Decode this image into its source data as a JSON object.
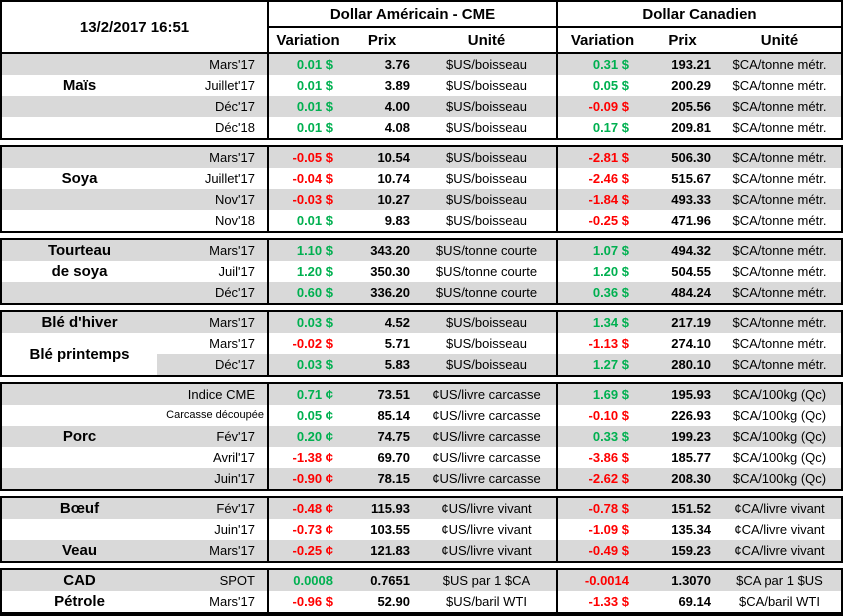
{
  "header": {
    "datetime": "13/2/2017 16:51",
    "us_group": "Dollar Américain - CME",
    "ca_group": "Dollar Canadien",
    "columns": {
      "variation": "Variation",
      "prix": "Prix",
      "unite": "Unité"
    }
  },
  "colors": {
    "positive": "#00B050",
    "negative": "#FF0000",
    "row_shade": "#D9D9D9"
  },
  "sections": [
    {
      "id": "mais",
      "label_cells": [
        {
          "row": 2,
          "span": 1,
          "text": "Maïs"
        }
      ],
      "rows": [
        {
          "month": "Mars'17",
          "shaded": true,
          "us": {
            "var": "0.01 $",
            "dir": "pos",
            "prix": "3.76",
            "unit": "$US/boisseau"
          },
          "ca": {
            "var": "0.31 $",
            "dir": "pos",
            "prix": "193.21",
            "unit": "$CA/tonne métr."
          }
        },
        {
          "month": "Juillet'17",
          "shaded": false,
          "us": {
            "var": "0.01 $",
            "dir": "pos",
            "prix": "3.89",
            "unit": "$US/boisseau"
          },
          "ca": {
            "var": "0.05 $",
            "dir": "pos",
            "prix": "200.29",
            "unit": "$CA/tonne métr."
          }
        },
        {
          "month": "Déc'17",
          "shaded": true,
          "us": {
            "var": "0.01 $",
            "dir": "pos",
            "prix": "4.00",
            "unit": "$US/boisseau"
          },
          "ca": {
            "var": "-0.09 $",
            "dir": "neg",
            "prix": "205.56",
            "unit": "$CA/tonne métr."
          }
        },
        {
          "month": "Déc'18",
          "shaded": false,
          "us": {
            "var": "0.01 $",
            "dir": "pos",
            "prix": "4.08",
            "unit": "$US/boisseau"
          },
          "ca": {
            "var": "0.17 $",
            "dir": "pos",
            "prix": "209.81",
            "unit": "$CA/tonne métr."
          }
        }
      ]
    },
    {
      "id": "soya",
      "label_cells": [
        {
          "row": 2,
          "span": 1,
          "text": "Soya"
        }
      ],
      "rows": [
        {
          "month": "Mars'17",
          "shaded": true,
          "us": {
            "var": "-0.05 $",
            "dir": "neg",
            "prix": "10.54",
            "unit": "$US/boisseau"
          },
          "ca": {
            "var": "-2.81 $",
            "dir": "neg",
            "prix": "506.30",
            "unit": "$CA/tonne métr."
          }
        },
        {
          "month": "Juillet'17",
          "shaded": false,
          "us": {
            "var": "-0.04 $",
            "dir": "neg",
            "prix": "10.74",
            "unit": "$US/boisseau"
          },
          "ca": {
            "var": "-2.46 $",
            "dir": "neg",
            "prix": "515.67",
            "unit": "$CA/tonne métr."
          }
        },
        {
          "month": "Nov'17",
          "shaded": true,
          "us": {
            "var": "-0.03 $",
            "dir": "neg",
            "prix": "10.27",
            "unit": "$US/boisseau"
          },
          "ca": {
            "var": "-1.84 $",
            "dir": "neg",
            "prix": "493.33",
            "unit": "$CA/tonne métr."
          }
        },
        {
          "month": "Nov'18",
          "shaded": false,
          "us": {
            "var": "0.01 $",
            "dir": "pos",
            "prix": "9.83",
            "unit": "$US/boisseau"
          },
          "ca": {
            "var": "-0.25 $",
            "dir": "neg",
            "prix": "471.96",
            "unit": "$CA/tonne métr."
          }
        }
      ]
    },
    {
      "id": "tourteau-de-soya",
      "label_cells": [
        {
          "row": 1,
          "span": 1,
          "text": "Tourteau"
        },
        {
          "row": 2,
          "span": 1,
          "text": "de soya"
        }
      ],
      "rows": [
        {
          "month": "Mars'17",
          "shaded": true,
          "us": {
            "var": "1.10 $",
            "dir": "pos",
            "prix": "343.20",
            "unit": "$US/tonne courte"
          },
          "ca": {
            "var": "1.07 $",
            "dir": "pos",
            "prix": "494.32",
            "unit": "$CA/tonne métr."
          }
        },
        {
          "month": "Juil'17",
          "shaded": false,
          "us": {
            "var": "1.20 $",
            "dir": "pos",
            "prix": "350.30",
            "unit": "$US/tonne courte"
          },
          "ca": {
            "var": "1.20 $",
            "dir": "pos",
            "prix": "504.55",
            "unit": "$CA/tonne métr."
          }
        },
        {
          "month": "Déc'17",
          "shaded": true,
          "us": {
            "var": "0.60 $",
            "dir": "pos",
            "prix": "336.20",
            "unit": "$US/tonne courte"
          },
          "ca": {
            "var": "0.36 $",
            "dir": "pos",
            "prix": "484.24",
            "unit": "$CA/tonne métr."
          }
        }
      ]
    },
    {
      "id": "ble",
      "label_cells": [
        {
          "row": 1,
          "span": 1,
          "text": "Blé d'hiver"
        },
        {
          "row": 2,
          "span": 2,
          "text": "Blé printemps",
          "bg": "white"
        }
      ],
      "rows": [
        {
          "month": "Mars'17",
          "shaded": true,
          "us": {
            "var": "0.03 $",
            "dir": "pos",
            "prix": "4.52",
            "unit": "$US/boisseau"
          },
          "ca": {
            "var": "1.34 $",
            "dir": "pos",
            "prix": "217.19",
            "unit": "$CA/tonne métr."
          }
        },
        {
          "month": "Mars'17",
          "shaded": false,
          "us": {
            "var": "-0.02 $",
            "dir": "neg",
            "prix": "5.71",
            "unit": "$US/boisseau"
          },
          "ca": {
            "var": "-1.13 $",
            "dir": "neg",
            "prix": "274.10",
            "unit": "$CA/tonne métr."
          }
        },
        {
          "month": "Déc'17",
          "shaded": true,
          "us": {
            "var": "0.03 $",
            "dir": "pos",
            "prix": "5.83",
            "unit": "$US/boisseau"
          },
          "ca": {
            "var": "1.27 $",
            "dir": "pos",
            "prix": "280.10",
            "unit": "$CA/tonne métr."
          }
        }
      ]
    },
    {
      "id": "porc",
      "label_cells": [
        {
          "row": 3,
          "span": 1,
          "text": "Porc"
        }
      ],
      "rows": [
        {
          "month": "Indice CME",
          "shaded": true,
          "us": {
            "var": "0.71 ¢",
            "dir": "pos",
            "prix": "73.51",
            "unit": "¢US/livre carcasse"
          },
          "ca": {
            "var": "1.69 $",
            "dir": "pos",
            "prix": "195.93",
            "unit": "$CA/100kg (Qc)"
          }
        },
        {
          "month": "Carcasse découpée",
          "shaded": false,
          "small": true,
          "us": {
            "var": "0.05 ¢",
            "dir": "pos",
            "prix": "85.14",
            "unit": "¢US/livre carcasse"
          },
          "ca": {
            "var": "-0.10 $",
            "dir": "neg",
            "prix": "226.93",
            "unit": "$CA/100kg (Qc)"
          }
        },
        {
          "month": "Fév'17",
          "shaded": true,
          "us": {
            "var": "0.20 ¢",
            "dir": "pos",
            "prix": "74.75",
            "unit": "¢US/livre carcasse"
          },
          "ca": {
            "var": "0.33 $",
            "dir": "pos",
            "prix": "199.23",
            "unit": "$CA/100kg (Qc)"
          }
        },
        {
          "month": "Avril'17",
          "shaded": false,
          "us": {
            "var": "-1.38 ¢",
            "dir": "neg",
            "prix": "69.70",
            "unit": "¢US/livre carcasse"
          },
          "ca": {
            "var": "-3.86 $",
            "dir": "neg",
            "prix": "185.77",
            "unit": "$CA/100kg (Qc)"
          }
        },
        {
          "month": "Juin'17",
          "shaded": true,
          "us": {
            "var": "-0.90 ¢",
            "dir": "neg",
            "prix": "78.15",
            "unit": "¢US/livre carcasse"
          },
          "ca": {
            "var": "-2.62 $",
            "dir": "neg",
            "prix": "208.30",
            "unit": "$CA/100kg (Qc)"
          }
        }
      ]
    },
    {
      "id": "boeuf-veau",
      "label_cells": [
        {
          "row": 1,
          "span": 1,
          "text": "Bœuf"
        },
        {
          "row": 3,
          "span": 1,
          "text": "Veau"
        }
      ],
      "rows": [
        {
          "month": "Fév'17",
          "shaded": true,
          "us": {
            "var": "-0.48 ¢",
            "dir": "neg",
            "prix": "115.93",
            "unit": "¢US/livre vivant"
          },
          "ca": {
            "var": "-0.78 $",
            "dir": "neg",
            "prix": "151.52",
            "unit": "¢CA/livre vivant"
          }
        },
        {
          "month": "Juin'17",
          "shaded": false,
          "us": {
            "var": "-0.73 ¢",
            "dir": "neg",
            "prix": "103.55",
            "unit": "¢US/livre vivant"
          },
          "ca": {
            "var": "-1.09 $",
            "dir": "neg",
            "prix": "135.34",
            "unit": "¢CA/livre vivant"
          }
        },
        {
          "month": "Mars'17",
          "shaded": true,
          "us": {
            "var": "-0.25 ¢",
            "dir": "neg",
            "prix": "121.83",
            "unit": "¢US/livre vivant"
          },
          "ca": {
            "var": "-0.49 $",
            "dir": "neg",
            "prix": "159.23",
            "unit": "¢CA/livre vivant"
          }
        }
      ]
    },
    {
      "id": "cad-petrole",
      "label_cells": [
        {
          "row": 1,
          "span": 1,
          "text": "CAD"
        },
        {
          "row": 2,
          "span": 1,
          "text": "Pétrole"
        }
      ],
      "rows": [
        {
          "month": "SPOT",
          "shaded": true,
          "us": {
            "var": "0.0008",
            "dir": "pos",
            "prix": "0.7651",
            "unit": "$US par 1 $CA"
          },
          "ca": {
            "var": "-0.0014",
            "dir": "neg",
            "prix": "1.3070",
            "unit": "$CA par 1 $US"
          }
        },
        {
          "month": "Mars'17",
          "shaded": false,
          "us": {
            "var": "-0.96 $",
            "dir": "neg",
            "prix": "52.90",
            "unit": "$US/baril WTI"
          },
          "ca": {
            "var": "-1.33 $",
            "dir": "neg",
            "prix": "69.14",
            "unit": "$CA/baril WTI"
          }
        }
      ]
    }
  ]
}
